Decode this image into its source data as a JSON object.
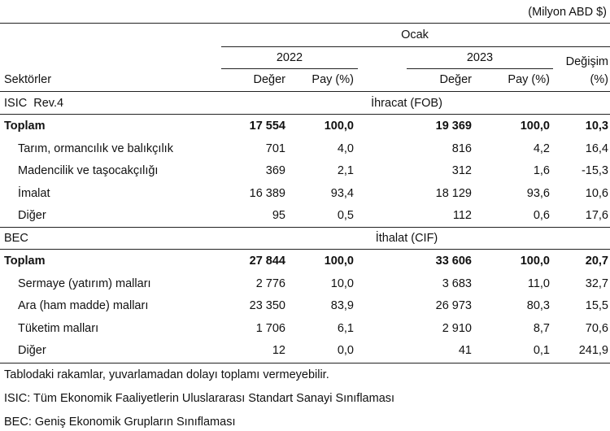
{
  "unit": "(Milyon ABD $)",
  "header": {
    "period": "Ocak",
    "year1": "2022",
    "year2": "2023",
    "sector": "Sektörler",
    "value1": "Değer",
    "share1": "Pay (%)",
    "value2": "Değer",
    "share2": "Pay (%)",
    "change1": "Değişim",
    "change2": "(%)"
  },
  "sections": [
    {
      "classification": "ISIC  Rev.4",
      "flow": "İhracat (FOB)",
      "rows": [
        [
          "Toplam",
          "17 554",
          "100,0",
          "19 369",
          "100,0",
          "10,3"
        ],
        [
          "Tarım, ormancılık ve balıkçılık",
          "701",
          "4,0",
          "816",
          "4,2",
          "16,4"
        ],
        [
          "Madencilik ve taşocakçılığı",
          "369",
          "2,1",
          "312",
          "1,6",
          "-15,3"
        ],
        [
          "İmalat",
          "16 389",
          "93,4",
          "18 129",
          "93,6",
          "10,6"
        ],
        [
          "Diğer",
          "95",
          "0,5",
          "112",
          "0,6",
          "17,6"
        ]
      ]
    },
    {
      "classification": "BEC",
      "flow": "İthalat (CIF)",
      "rows": [
        [
          "Toplam",
          "27 844",
          "100,0",
          "33 606",
          "100,0",
          "20,7"
        ],
        [
          "Sermaye (yatırım) malları",
          "2 776",
          "10,0",
          "3 683",
          "11,0",
          "32,7"
        ],
        [
          "Ara (ham madde) malları",
          "23 350",
          "83,9",
          "26 973",
          "80,3",
          "15,5"
        ],
        [
          "Tüketim malları",
          "1 706",
          "6,1",
          "2 910",
          "8,7",
          "70,6"
        ],
        [
          "Diğer",
          "12",
          "0,0",
          "41",
          "0,1",
          "241,9"
        ]
      ]
    }
  ],
  "notes": [
    "Tablodaki rakamlar, yuvarlamadan dolayı toplamı vermeyebilir.",
    "ISIC: Tüm Ekonomik Faaliyetlerin Uluslararası Standart Sanayi Sınıflaması",
    "BEC: Geniş Ekonomik Grupların Sınıflaması"
  ]
}
